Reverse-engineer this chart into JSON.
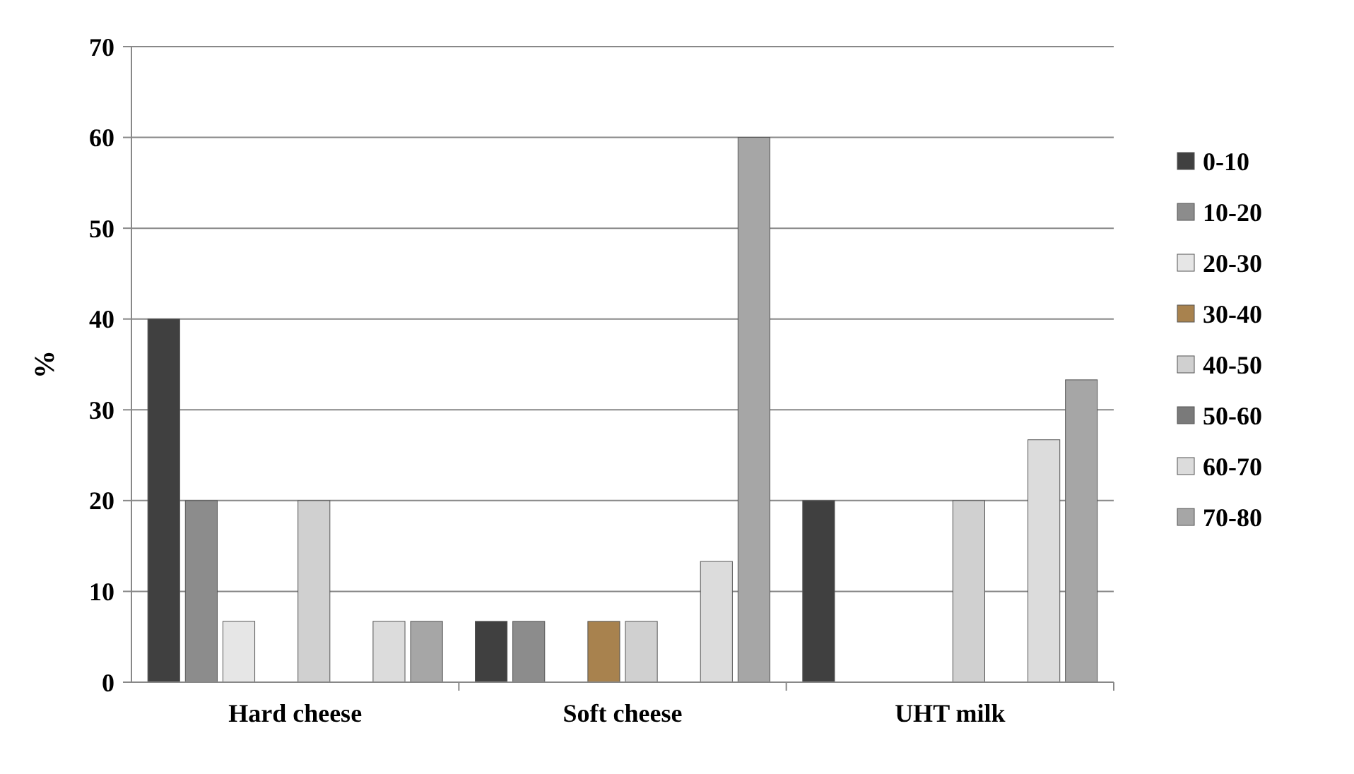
{
  "chart_data": {
    "type": "bar",
    "ylabel": "%",
    "categories": [
      "Hard cheese",
      "Soft cheese",
      "UHT milk"
    ],
    "series": [
      {
        "name": "0-10",
        "color": "#404040",
        "values": [
          40,
          6.7,
          20
        ]
      },
      {
        "name": "10-20",
        "color": "#8c8c8c",
        "values": [
          20,
          6.7,
          0
        ]
      },
      {
        "name": "20-30",
        "color": "#e6e6e6",
        "values": [
          6.7,
          0,
          0
        ]
      },
      {
        "name": "30-40",
        "color": "#a8824e",
        "values": [
          0,
          6.7,
          0
        ]
      },
      {
        "name": "40-50",
        "color": "#d0d0d0",
        "values": [
          20,
          6.7,
          20
        ]
      },
      {
        "name": "50-60",
        "color": "#7a7a7a",
        "values": [
          0,
          0,
          0
        ]
      },
      {
        "name": "60-70",
        "color": "#dcdcdc",
        "values": [
          6.7,
          13.3,
          26.7
        ]
      },
      {
        "name": "70-80",
        "color": "#a6a6a6",
        "values": [
          6.7,
          60,
          33.3
        ]
      }
    ],
    "ylim": [
      0,
      70
    ],
    "yticks": [
      0,
      10,
      20,
      30,
      40,
      50,
      60,
      70
    ],
    "grid": "y",
    "legend": "right"
  }
}
